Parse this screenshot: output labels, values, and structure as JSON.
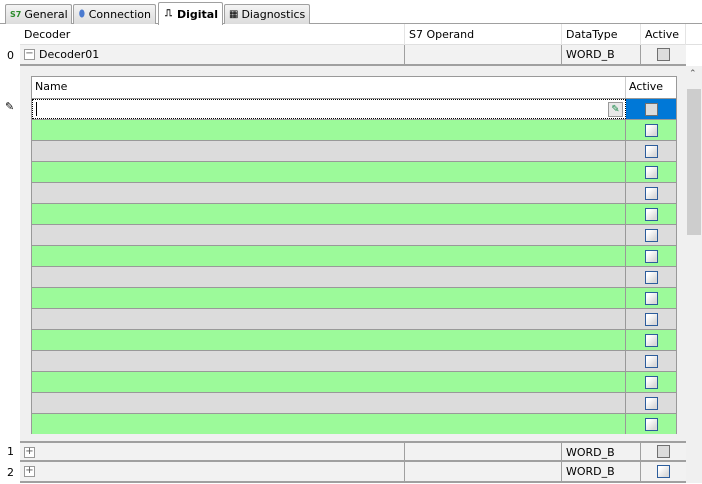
{
  "tabs": [
    {
      "label": "General",
      "icon": "s7-icon"
    },
    {
      "label": "Connection",
      "icon": "connection-icon"
    },
    {
      "label": "Digital",
      "icon": "digital-signal-icon",
      "active": true
    },
    {
      "label": "Diagnostics",
      "icon": "chip-icon"
    }
  ],
  "table": {
    "columns": [
      "Decoder",
      "S7 Operand",
      "DataType",
      "Active"
    ],
    "rows": [
      {
        "index": "0",
        "decoder": "Decoder01",
        "operand": "",
        "datatype": "WORD_B",
        "active": false,
        "expanded": true
      },
      {
        "index": "1",
        "decoder": "",
        "operand": "",
        "datatype": "WORD_B",
        "active": false,
        "expanded": false
      },
      {
        "index": "2",
        "decoder": "",
        "operand": "",
        "datatype": "WORD_B",
        "active": false,
        "expanded": false
      }
    ]
  },
  "subgrid": {
    "columns": [
      "Name",
      "Active"
    ],
    "edit_row": {
      "name": "",
      "active": false
    },
    "row_count": 15
  },
  "colors": {
    "green_row": "#9cfa9a",
    "gray_row": "#dcdcdc",
    "selection": "#0078d7"
  }
}
